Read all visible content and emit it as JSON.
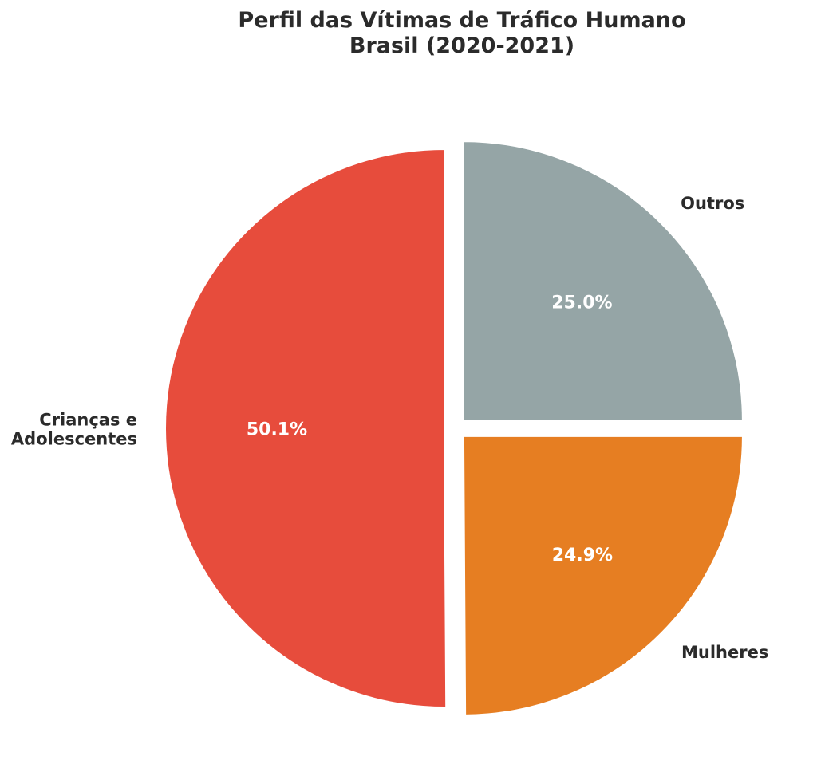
{
  "chart_data": {
    "type": "pie",
    "title": [
      "Perfil das Vítimas de Tráfico Humano",
      "Brasil (2020-2021)"
    ],
    "start_angle_deg": 90,
    "direction": "counterclockwise",
    "slices": [
      {
        "label": [
          "Crianças e",
          "Adolescentes"
        ],
        "value": 50.1,
        "pct_label": "50.1%",
        "color": "#e74c3c"
      },
      {
        "label": [
          "Mulheres"
        ],
        "value": 24.9,
        "pct_label": "24.9%",
        "color": "#e67e22"
      },
      {
        "label": [
          "Outros"
        ],
        "value": 25.0,
        "pct_label": "25.0%",
        "color": "#95a5a6"
      }
    ]
  }
}
